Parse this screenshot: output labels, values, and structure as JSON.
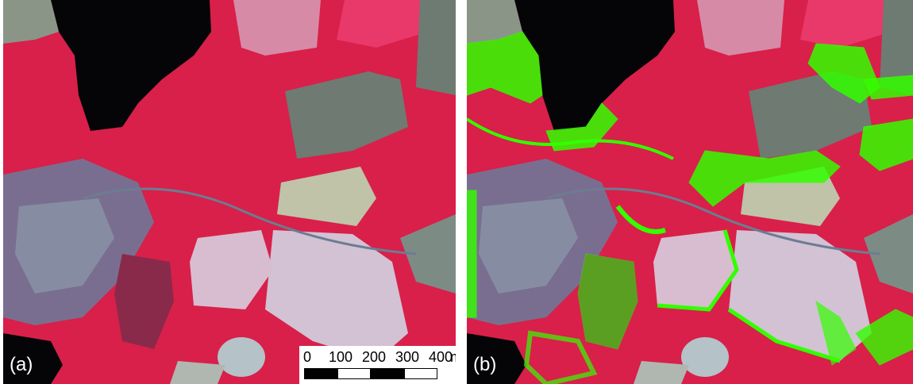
{
  "panels": [
    {
      "label": "(a)"
    },
    {
      "label": "(b)"
    }
  ],
  "scale_bar": {
    "ticks": [
      "0",
      "100",
      "200",
      "300",
      "400"
    ],
    "unit": "m"
  },
  "colors": {
    "vegetation_red": "#e0224a",
    "dark_red": "#b0103a",
    "water": "#050508",
    "field_gray": "#6f7a72",
    "field_light": "#c9b8c8",
    "urban_blue": "#7f8ea8",
    "classified_green": "#33ff00"
  }
}
